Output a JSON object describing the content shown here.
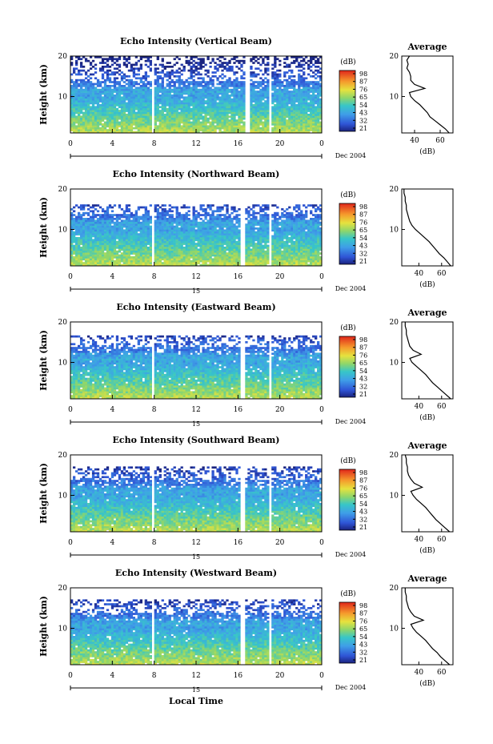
{
  "figure": {
    "xlabel_bottom": "Local Time",
    "date_label": "Dec 2004",
    "colorbar_unit": "(dB)",
    "colorbar_ticks": [
      "98",
      "87",
      "76",
      "65",
      "54",
      "43",
      "32",
      "21"
    ],
    "avg_title": "Average",
    "avg_xlabel": "(dB)",
    "ylabel": "Height (km)"
  },
  "chart_data": [
    {
      "type": "heatmap",
      "title": "Echo Intensity (Vertical Beam)",
      "ylabel": "Height (km)",
      "x_ticks": [
        "0",
        "4",
        "8",
        "12",
        "16",
        "20",
        "0"
      ],
      "x_day_label": "",
      "xlim": [
        0,
        24
      ],
      "y_ticks": [
        "20",
        "10"
      ],
      "ylim": [
        1,
        20
      ],
      "colorbar": {
        "label": "(dB)",
        "ticks": [
          98,
          87,
          76,
          65,
          54,
          43,
          32,
          21
        ]
      },
      "gaps": [
        [
          7.7,
          8.0
        ],
        [
          16.6,
          17.2
        ],
        [
          18.9,
          19.3
        ]
      ],
      "top_km": 20,
      "average": {
        "title": "Average",
        "xlabel": "(dB)",
        "x_ticks": [
          "40",
          "60"
        ],
        "xlim": [
          30,
          70
        ],
        "ylim": [
          1,
          20
        ],
        "heights": [
          1,
          2,
          3,
          4,
          5,
          6,
          7,
          8,
          9,
          10,
          11,
          12,
          13,
          14,
          15,
          16,
          17,
          18,
          19,
          20
        ],
        "values": [
          67,
          64,
          60,
          56,
          52,
          50,
          47,
          44,
          40,
          37,
          36,
          48,
          40,
          37,
          37,
          36,
          34,
          35,
          34,
          36
        ]
      }
    },
    {
      "type": "heatmap",
      "title": "Echo Intensity (Northward Beam)",
      "ylabel": "Height (km)",
      "x_ticks": [
        "0",
        "4",
        "8",
        "12",
        "16",
        "20",
        "0"
      ],
      "x_day_label": "15",
      "xlim": [
        0,
        24
      ],
      "y_ticks": [
        "20",
        "10"
      ],
      "ylim": [
        1,
        20
      ],
      "colorbar": {
        "label": "(dB)",
        "ticks": [
          98,
          87,
          76,
          65,
          54,
          43,
          32,
          21
        ]
      },
      "gaps": [
        [
          7.7,
          8.0
        ],
        [
          16.2,
          16.6
        ],
        [
          18.9,
          19.3
        ]
      ],
      "top_km": 16,
      "average": {
        "title": "",
        "xlabel": "(dB)",
        "x_ticks": [
          "40",
          "60"
        ],
        "xlim": [
          25,
          70
        ],
        "ylim": [
          1,
          20
        ],
        "heights": [
          1,
          2,
          3,
          4,
          5,
          6,
          7,
          8,
          9,
          10,
          11,
          12,
          13,
          14,
          15,
          16,
          17,
          18,
          19,
          20
        ],
        "values": [
          68,
          65,
          62,
          58,
          55,
          52,
          49,
          45,
          41,
          37,
          34,
          32,
          31,
          30,
          29,
          29,
          28,
          28,
          27,
          27
        ]
      }
    },
    {
      "type": "heatmap",
      "title": "Echo Intensity (Eastward Beam)",
      "ylabel": "Height (km)",
      "x_ticks": [
        "0",
        "4",
        "8",
        "12",
        "16",
        "20",
        "0"
      ],
      "x_day_label": "15",
      "xlim": [
        0,
        24
      ],
      "y_ticks": [
        "20",
        "10"
      ],
      "ylim": [
        1,
        20
      ],
      "colorbar": {
        "label": "(dB)",
        "ticks": [
          98,
          87,
          76,
          65,
          54,
          43,
          32,
          21
        ]
      },
      "gaps": [
        [
          7.7,
          8.0
        ],
        [
          16.2,
          16.6
        ],
        [
          18.9,
          19.3
        ]
      ],
      "top_km": 16.5,
      "average": {
        "title": "Average",
        "xlabel": "(dB)",
        "x_ticks": [
          "40",
          "60"
        ],
        "xlim": [
          25,
          70
        ],
        "ylim": [
          1,
          20
        ],
        "heights": [
          1,
          2,
          3,
          4,
          5,
          6,
          7,
          8,
          9,
          10,
          11,
          12,
          13,
          14,
          15,
          16,
          17,
          18,
          19,
          20
        ],
        "values": [
          68,
          64,
          60,
          56,
          52,
          49,
          46,
          42,
          38,
          34,
          32,
          42,
          35,
          32,
          31,
          30,
          29,
          29,
          28,
          28
        ]
      }
    },
    {
      "type": "heatmap",
      "title": "Echo Intensity (Southward Beam)",
      "ylabel": "Height (km)",
      "x_ticks": [
        "0",
        "4",
        "8",
        "12",
        "16",
        "20",
        "0"
      ],
      "x_day_label": "15",
      "xlim": [
        0,
        24
      ],
      "y_ticks": [
        "20",
        "10"
      ],
      "ylim": [
        1,
        20
      ],
      "colorbar": {
        "label": "(dB)",
        "ticks": [
          98,
          87,
          76,
          65,
          54,
          43,
          32,
          21
        ]
      },
      "gaps": [
        [
          7.7,
          8.0
        ],
        [
          16.2,
          16.6
        ],
        [
          18.9,
          19.3
        ]
      ],
      "top_km": 17,
      "average": {
        "title": "Average",
        "xlabel": "(dB)",
        "x_ticks": [
          "40",
          "60"
        ],
        "xlim": [
          25,
          70
        ],
        "ylim": [
          1,
          20
        ],
        "heights": [
          1,
          2,
          3,
          4,
          5,
          6,
          7,
          8,
          9,
          10,
          11,
          12,
          13,
          14,
          15,
          16,
          17,
          18,
          19,
          20
        ],
        "values": [
          67,
          63,
          59,
          55,
          52,
          49,
          46,
          42,
          38,
          35,
          33,
          43,
          36,
          33,
          31,
          30,
          30,
          29,
          29,
          28
        ]
      }
    },
    {
      "type": "heatmap",
      "title": "Echo Intensity (Westward Beam)",
      "ylabel": "Height (km)",
      "x_ticks": [
        "0",
        "4",
        "8",
        "12",
        "16",
        "20",
        "0"
      ],
      "x_day_label": "15",
      "xlim": [
        0,
        24
      ],
      "y_ticks": [
        "20",
        "10"
      ],
      "ylim": [
        1,
        20
      ],
      "colorbar": {
        "label": "(dB)",
        "ticks": [
          98,
          87,
          76,
          65,
          54,
          43,
          32,
          21
        ]
      },
      "gaps": [
        [
          7.7,
          8.0
        ],
        [
          16.2,
          16.6
        ],
        [
          18.9,
          19.3
        ]
      ],
      "top_km": 17,
      "average": {
        "title": "Average",
        "xlabel": "(dB)",
        "x_ticks": [
          "40",
          "60"
        ],
        "xlim": [
          25,
          70
        ],
        "ylim": [
          1,
          20
        ],
        "heights": [
          1,
          2,
          3,
          4,
          5,
          6,
          7,
          8,
          9,
          10,
          11,
          12,
          13,
          14,
          15,
          16,
          17,
          18,
          19,
          20
        ],
        "values": [
          67,
          63,
          59,
          56,
          52,
          49,
          46,
          42,
          38,
          35,
          33,
          44,
          36,
          33,
          31,
          30,
          29,
          29,
          28,
          28
        ]
      }
    }
  ]
}
